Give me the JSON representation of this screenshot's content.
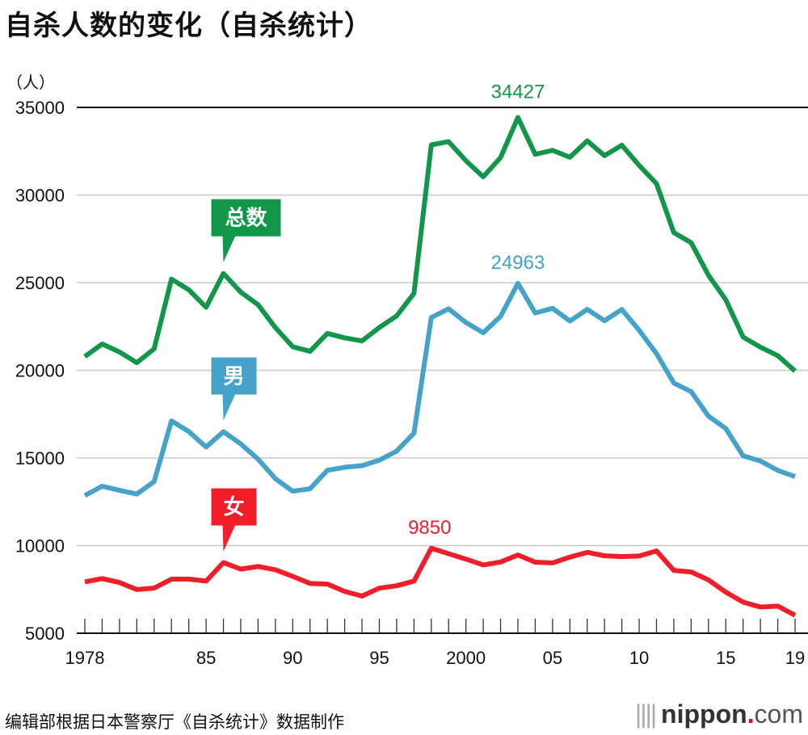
{
  "title": "自杀人数的变化（自杀统计）",
  "source": "编辑部根据日本警察厅《自杀统计》数据制作",
  "logo": {
    "name": "nippon",
    "dot": ".",
    "suffix": "com"
  },
  "chart_data": {
    "type": "line",
    "title": "自杀人数的变化（自杀统计）",
    "ylabel": "（人）",
    "ylim": [
      5000,
      35000
    ],
    "yticks": [
      5000,
      10000,
      15000,
      20000,
      25000,
      30000,
      35000
    ],
    "xlim": [
      1978,
      2019
    ],
    "xtick_labels": [
      {
        "x": 1978,
        "label": "1978"
      },
      {
        "x": 1985,
        "label": "85"
      },
      {
        "x": 1990,
        "label": "90"
      },
      {
        "x": 1995,
        "label": "95"
      },
      {
        "x": 2000,
        "label": "2000"
      },
      {
        "x": 2005,
        "label": "05"
      },
      {
        "x": 2010,
        "label": "10"
      },
      {
        "x": 2015,
        "label": "15"
      },
      {
        "x": 2019,
        "label": "19"
      }
    ],
    "grid": true,
    "x": [
      1978,
      1979,
      1980,
      1981,
      1982,
      1983,
      1984,
      1985,
      1986,
      1987,
      1988,
      1989,
      1990,
      1991,
      1992,
      1993,
      1994,
      1995,
      1996,
      1997,
      1998,
      1999,
      2000,
      2001,
      2002,
      2003,
      2004,
      2005,
      2006,
      2007,
      2008,
      2009,
      2010,
      2011,
      2012,
      2013,
      2014,
      2015,
      2016,
      2017,
      2018,
      2019
    ],
    "series": [
      {
        "name": "总数",
        "color": "#12964a",
        "label_point": 1986,
        "peak_label": "34427",
        "peak_x": 2003,
        "values": [
          20788,
          21503,
          21048,
          20434,
          21228,
          25202,
          24596,
          23599,
          25524,
          24460,
          23742,
          22436,
          21346,
          21084,
          22104,
          21851,
          21679,
          22445,
          23104,
          24391,
          32863,
          33048,
          31957,
          31042,
          32143,
          34427,
          32325,
          32552,
          32155,
          33093,
          32249,
          32845,
          31690,
          30651,
          27858,
          27283,
          25427,
          24025,
          21897,
          21321,
          20840,
          19959
        ]
      },
      {
        "name": "男",
        "color": "#45a3c9",
        "label_point": 1986,
        "peak_label": "24963",
        "peak_x": 2003,
        "values": [
          12859,
          13386,
          13155,
          12942,
          13654,
          17116,
          16508,
          15624,
          16497,
          15802,
          14934,
          13818,
          13102,
          13242,
          14296,
          14468,
          14560,
          14874,
          15393,
          16416,
          23013,
          23512,
          22727,
          22144,
          23080,
          24963,
          23272,
          23540,
          22813,
          23478,
          22831,
          23472,
          22283,
          20955,
          19273,
          18787,
          17386,
          16681,
          15121,
          14826,
          14290,
          13937
        ]
      },
      {
        "name": "女",
        "color": "#f01e28",
        "label_point": 1986,
        "peak_label": "9850",
        "peak_x": 1998,
        "values": [
          7929,
          8117,
          7893,
          7492,
          7574,
          8086,
          8088,
          7975,
          9027,
          8658,
          8808,
          8618,
          8244,
          7842,
          7808,
          7383,
          7119,
          7571,
          7711,
          7975,
          9850,
          9536,
          9230,
          8898,
          9063,
          9464,
          9053,
          9012,
          9342,
          9615,
          9418,
          9373,
          9407,
          9696,
          8585,
          8496,
          8041,
          7344,
          6776,
          6495,
          6550,
          6022
        ]
      }
    ]
  }
}
